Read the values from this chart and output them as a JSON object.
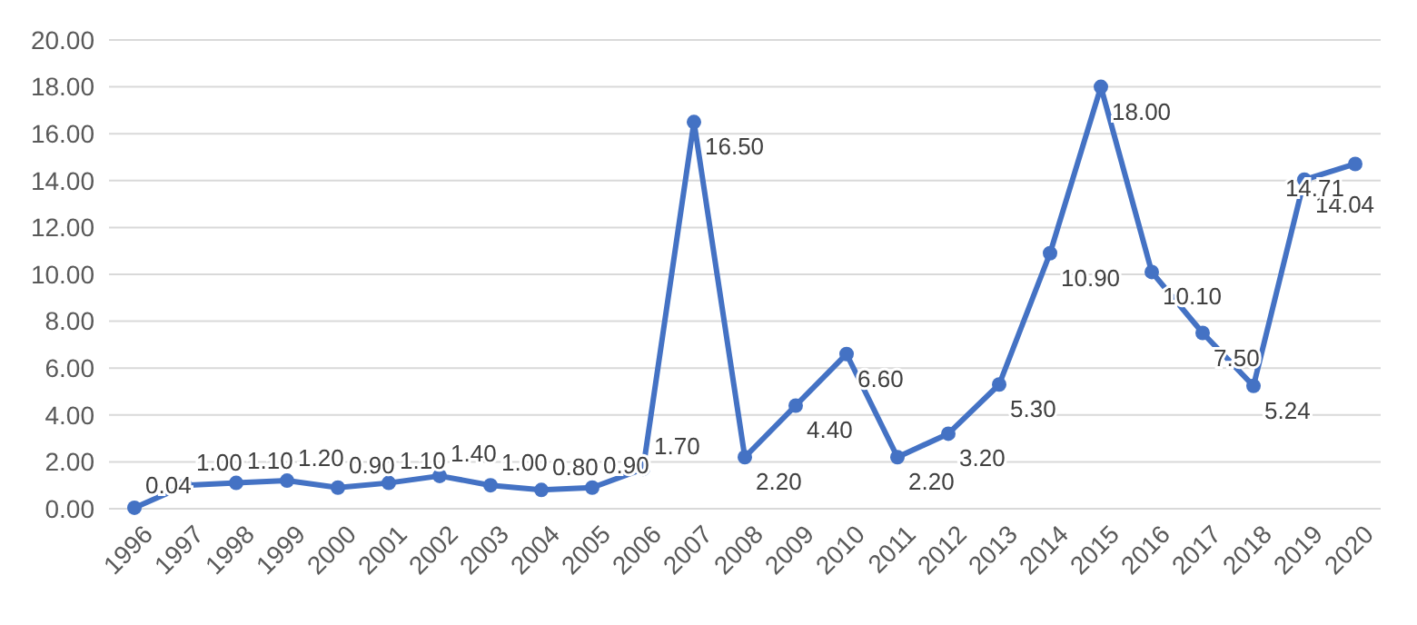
{
  "chart_data": {
    "type": "line",
    "categories": [
      "1996",
      "1997",
      "1998",
      "1999",
      "2000",
      "2001",
      "2002",
      "2003",
      "2004",
      "2005",
      "2006",
      "2007",
      "2008",
      "2009",
      "2010",
      "2011",
      "2012",
      "2013",
      "2014",
      "2015",
      "2016",
      "2017",
      "2018",
      "2019",
      "2020"
    ],
    "series": [
      {
        "color": "#4472c4",
        "values": [
          0.04,
          1.0,
          1.1,
          1.2,
          0.9,
          1.1,
          1.4,
          1.0,
          0.8,
          0.9,
          1.7,
          16.5,
          2.2,
          4.4,
          6.6,
          2.2,
          3.2,
          5.3,
          10.9,
          18.0,
          10.1,
          7.5,
          5.24,
          14.04,
          14.71
        ],
        "value_labels": [
          "0.04",
          "1.00",
          "1.10",
          "1.20",
          "0.90",
          "1.10",
          "1.40",
          "1.00",
          "0.80",
          "0.90",
          "1.70",
          "16.50",
          "2.20",
          "4.40",
          "6.60",
          "2.20",
          "3.20",
          "5.30",
          "10.90",
          "18.00",
          "10.10",
          "7.50",
          "5.24",
          "14.04",
          "14.71"
        ]
      }
    ],
    "ylim": [
      0,
      20
    ],
    "yticks": [
      {
        "value": 0,
        "label": "0.00"
      },
      {
        "value": 2,
        "label": "2.00"
      },
      {
        "value": 4,
        "label": "4.00"
      },
      {
        "value": 6,
        "label": "6.00"
      },
      {
        "value": 8,
        "label": "8.00"
      },
      {
        "value": 10,
        "label": "10.00"
      },
      {
        "value": 12,
        "label": "12.00"
      },
      {
        "value": 14,
        "label": "14.00"
      },
      {
        "value": 16,
        "label": "16.00"
      },
      {
        "value": 18,
        "label": "18.00"
      },
      {
        "value": 20,
        "label": "20.00"
      }
    ],
    "grid": "y",
    "marker": "circle",
    "line_style": "solid"
  }
}
